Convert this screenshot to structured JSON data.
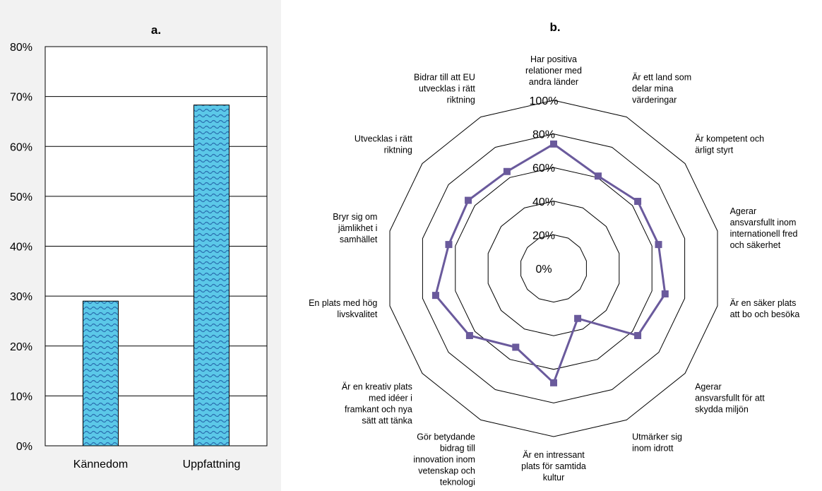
{
  "chart_data": [
    {
      "type": "bar",
      "title": "a.",
      "categories": [
        "Kännedom",
        "Uppfattning"
      ],
      "values": [
        29,
        68.3
      ],
      "ylim": [
        0,
        80
      ],
      "yticks": [
        "0%",
        "10%",
        "20%",
        "30%",
        "40%",
        "50%",
        "60%",
        "70%",
        "80%"
      ],
      "grid": true,
      "colors": {
        "fill": "#5bc8e8",
        "pattern": "#2a6fb0"
      }
    },
    {
      "type": "radar",
      "title": "b.",
      "ylim": [
        0,
        100
      ],
      "rticks": [
        "0%",
        "20%",
        "40%",
        "60%",
        "80%",
        "100%"
      ],
      "categories": [
        "Har positiva relationer med andra länder",
        "Är ett land som delar mina värderingar",
        "Är kompetent och ärligt styrt",
        "Agerar ansvarsfullt inom internationell fred och säkerhet",
        "Är en säker plats att bo och besöka",
        "Agerar ansvarsfullt för att skydda miljön",
        "Utmärker sig inom idrott",
        "Är en intressant plats för samtida kultur",
        "Gör betydande bidrag till innovation inom vetenskap och teknologi",
        "Är en kreativ plats med idéer i framkant och nya sätt att tänka",
        "En plats med hög livskvalitet",
        "Bryr sig om jämlikhet i samhället",
        "Utvecklas i rätt riktning",
        "Bidrar till att EU utvecklas i rätt riktning"
      ],
      "category_lines": [
        [
          "Har positiva",
          "relationer med",
          "andra länder"
        ],
        [
          "Är ett land som",
          "delar mina",
          "värderingar"
        ],
        [
          "Är kompetent och",
          "ärligt styrt"
        ],
        [
          "Agerar",
          "ansvarsfullt inom",
          "internationell fred",
          "och säkerhet"
        ],
        [
          "Är en säker plats",
          "att bo och besöka"
        ],
        [
          "Agerar",
          "ansvarsfullt för att",
          "skydda miljön"
        ],
        [
          "Utmärker sig",
          "inom idrott"
        ],
        [
          "Är en intressant",
          "plats för samtida",
          "kultur"
        ],
        [
          "Gör betydande",
          "bidrag till",
          "innovation inom",
          "vetenskap och",
          "teknologi"
        ],
        [
          "Är en kreativ plats",
          "med idéer i",
          "framkant och nya",
          "sätt att tänka"
        ],
        [
          "En plats med hög",
          "livskvalitet"
        ],
        [
          "Bryr sig om",
          "jämlikhet i",
          "samhället"
        ],
        [
          "Utvecklas i rätt",
          "riktning"
        ],
        [
          "Bidrar till att EU",
          "utvecklas i rätt",
          "riktning"
        ]
      ],
      "values": [
        74,
        61,
        64,
        64,
        68,
        64,
        33,
        68,
        52,
        64,
        72,
        64,
        65,
        64
      ],
      "colors": {
        "line": "#6a5a9c",
        "marker": "#6a5a9c",
        "grid": "#000000"
      }
    }
  ]
}
